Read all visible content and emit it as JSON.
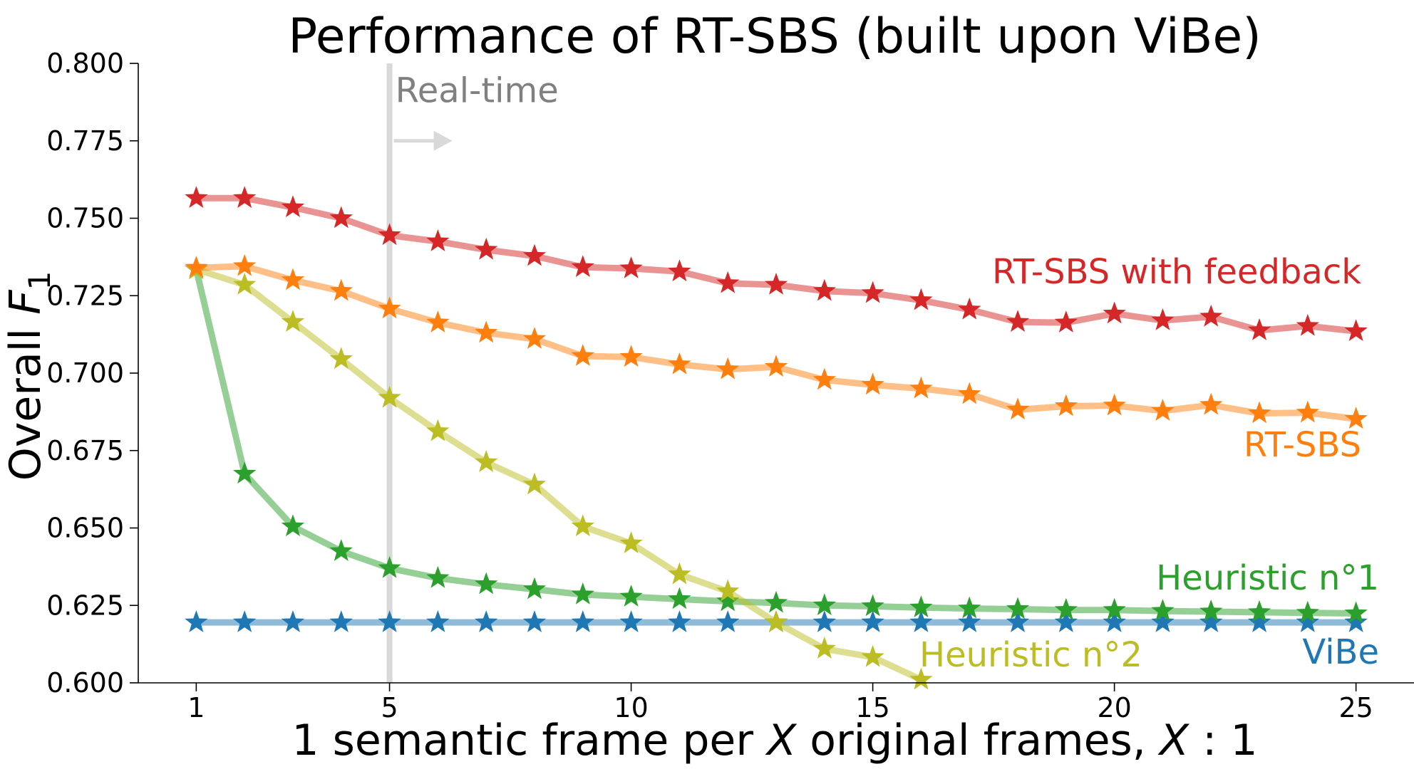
{
  "chart_data": {
    "type": "line",
    "title": "Performance of RT-SBS (built upon ViBe)",
    "xlabel_parts": [
      "1 semantic frame per ",
      "X",
      " original frames, ",
      "X",
      " : 1"
    ],
    "ylabel_parts": [
      "Overall ",
      "F",
      "1"
    ],
    "xlim": [
      -0.2,
      26.2
    ],
    "ylim": [
      0.6,
      0.8
    ],
    "x_ticks": [
      1,
      5,
      10,
      15,
      20,
      25
    ],
    "x_tick_labels": [
      "1",
      "5",
      "10",
      "15",
      "20",
      "25"
    ],
    "y_ticks": [
      0.6,
      0.625,
      0.65,
      0.675,
      0.7,
      0.725,
      0.75,
      0.775,
      0.8
    ],
    "y_tick_labels": [
      "0.600",
      "0.625",
      "0.650",
      "0.675",
      "0.700",
      "0.725",
      "0.750",
      "0.775",
      "0.800"
    ],
    "grid": false,
    "legend": "inline labels next to series",
    "vline": {
      "x": 5,
      "label": "Real-time",
      "color": "#d9d9d9"
    },
    "series": [
      {
        "name": "ViBe",
        "color": "#1f77b4",
        "x": [
          1,
          2,
          3,
          4,
          5,
          6,
          7,
          8,
          9,
          10,
          11,
          12,
          13,
          14,
          15,
          16,
          17,
          18,
          19,
          20,
          21,
          22,
          23,
          24,
          25
        ],
        "values": [
          0.6195,
          0.6195,
          0.6195,
          0.6195,
          0.6195,
          0.6195,
          0.6195,
          0.6195,
          0.6195,
          0.6195,
          0.6195,
          0.6195,
          0.6195,
          0.6195,
          0.6195,
          0.6195,
          0.6195,
          0.6195,
          0.6195,
          0.6195,
          0.6195,
          0.6195,
          0.6195,
          0.6195,
          0.6195
        ]
      },
      {
        "name": "Heuristic n°1",
        "color": "#2ca02c",
        "x": [
          1,
          2,
          3,
          4,
          5,
          6,
          7,
          8,
          9,
          10,
          11,
          12,
          13,
          14,
          15,
          16,
          17,
          18,
          19,
          20,
          21,
          22,
          23,
          24,
          25
        ],
        "values": [
          0.7335,
          0.6675,
          0.6505,
          0.6425,
          0.637,
          0.6338,
          0.6318,
          0.6302,
          0.6285,
          0.6278,
          0.627,
          0.6263,
          0.6258,
          0.625,
          0.6247,
          0.6243,
          0.624,
          0.6238,
          0.6235,
          0.6235,
          0.6232,
          0.623,
          0.6228,
          0.6226,
          0.6224
        ]
      },
      {
        "name": "Heuristic n°2",
        "color": "#bcbd22",
        "x": [
          1,
          2,
          3,
          4,
          5,
          6,
          7,
          8,
          9,
          10,
          11,
          12,
          13,
          14,
          15,
          16
        ],
        "values": [
          0.7335,
          0.7285,
          0.7165,
          0.7045,
          0.692,
          0.6812,
          0.6712,
          0.664,
          0.6505,
          0.645,
          0.635,
          0.6295,
          0.6195,
          0.611,
          0.6083,
          0.601
        ]
      },
      {
        "name": "RT-SBS",
        "color": "#ff7f0e",
        "x": [
          1,
          2,
          3,
          4,
          5,
          6,
          7,
          8,
          9,
          10,
          11,
          12,
          13,
          14,
          15,
          16,
          17,
          18,
          19,
          20,
          21,
          22,
          23,
          24,
          25
        ],
        "values": [
          0.734,
          0.7345,
          0.73,
          0.7265,
          0.7208,
          0.7163,
          0.713,
          0.711,
          0.7055,
          0.7052,
          0.7028,
          0.7012,
          0.702,
          0.6978,
          0.6962,
          0.695,
          0.6932,
          0.6882,
          0.6893,
          0.6895,
          0.6878,
          0.6897,
          0.687,
          0.6872,
          0.6852
        ]
      },
      {
        "name": "RT-SBS with feedback",
        "color": "#d62728",
        "x": [
          1,
          2,
          3,
          4,
          5,
          6,
          7,
          8,
          9,
          10,
          11,
          12,
          13,
          14,
          15,
          16,
          17,
          18,
          19,
          20,
          21,
          22,
          23,
          24,
          25
        ],
        "values": [
          0.7565,
          0.7565,
          0.7535,
          0.75,
          0.7445,
          0.7425,
          0.7398,
          0.7378,
          0.7342,
          0.7338,
          0.7328,
          0.729,
          0.7285,
          0.7265,
          0.7258,
          0.7235,
          0.7205,
          0.7165,
          0.7163,
          0.7192,
          0.717,
          0.7182,
          0.7138,
          0.7152,
          0.7135
        ]
      }
    ]
  }
}
